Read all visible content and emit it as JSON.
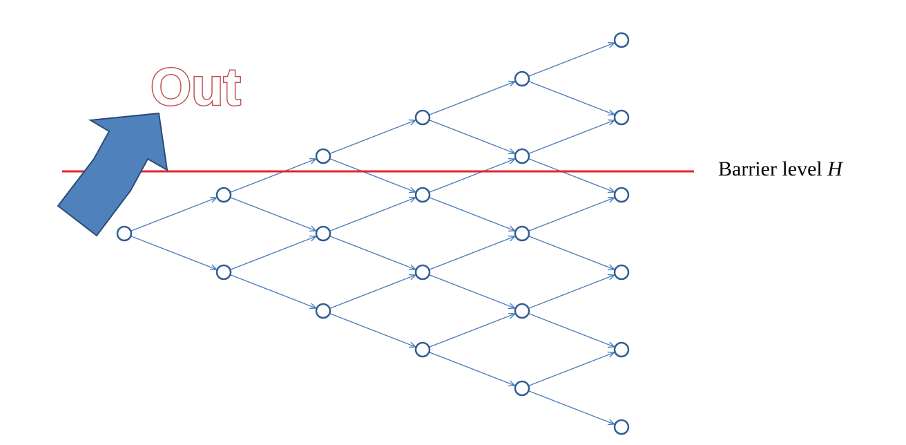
{
  "out_label": "Out",
  "barrier": {
    "label": "Barrier level ",
    "variable": "H"
  },
  "tree": {
    "steps": 5
  },
  "colors": {
    "tree_line": "#4a7ebb",
    "node_stroke": "#2f5d93",
    "barrier_line": "#e3242b",
    "arrow_fill": "#4f81bd",
    "arrow_stroke": "#2b4b74",
    "out_text_stroke": "#c0504d",
    "out_text_fill": "#ffffff"
  }
}
